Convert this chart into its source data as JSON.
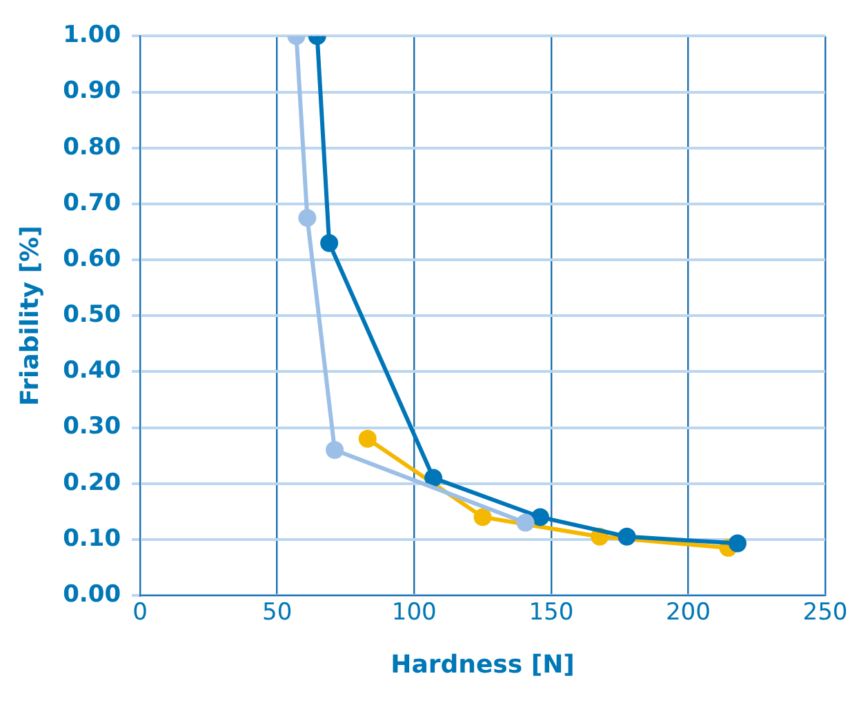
{
  "chart_data": {
    "type": "line",
    "xlabel": "Hardness [N]",
    "ylabel": "Friability [%]",
    "xlim": [
      0,
      250
    ],
    "xticks": [
      0,
      50,
      100,
      150,
      200,
      250
    ],
    "ylim": [
      0,
      1
    ],
    "yticks": [
      {
        "value": 0,
        "label": "0.00"
      },
      {
        "value": 0.1,
        "label": "0.10"
      },
      {
        "value": 0.2,
        "label": "0.20"
      },
      {
        "value": 0.3,
        "label": "0.30"
      },
      {
        "value": 0.4,
        "label": "0.40"
      },
      {
        "value": 0.5,
        "label": "0.50"
      },
      {
        "value": 0.6,
        "label": "0.60"
      },
      {
        "value": 0.7,
        "label": "0.70"
      },
      {
        "value": 0.8,
        "label": "0.80"
      },
      {
        "value": 0.9,
        "label": "0.90"
      },
      {
        "value": 1,
        "label": "1.00"
      }
    ],
    "grid": true,
    "legend": false,
    "marker": "circle",
    "line_style": "solid",
    "series": [
      {
        "color": "#9bbfe6",
        "x": [
          57,
          61,
          71,
          140.6
        ],
        "values": [
          1.0,
          0.675,
          0.26,
          0.13
        ]
      },
      {
        "color": "#0076b8",
        "x": [
          64.6,
          69,
          107,
          146,
          177.6,
          218
        ],
        "values": [
          1.0,
          0.63,
          0.21,
          0.14,
          0.105,
          0.093
        ]
      },
      {
        "color": "#f5b800",
        "x": [
          83,
          125,
          167.7,
          214.6
        ],
        "values": [
          0.28,
          0.14,
          0.105,
          0.085
        ]
      }
    ]
  }
}
